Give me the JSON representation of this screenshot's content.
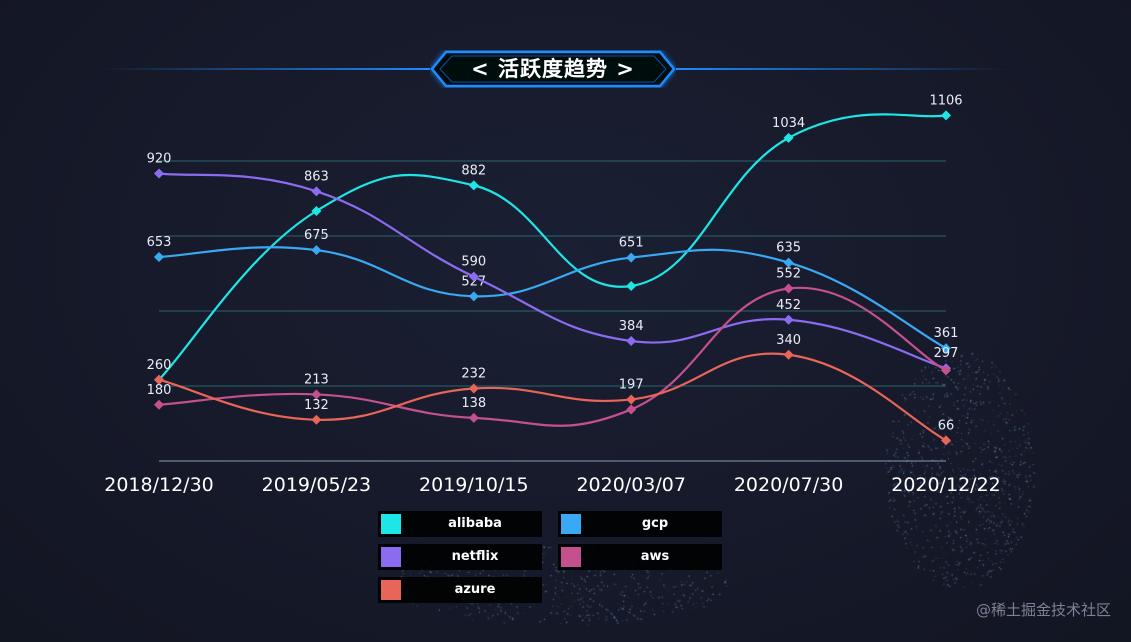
{
  "title": "< 活跃度趋势 >",
  "watermark": "@稀土掘金技术社区",
  "chart_data": {
    "type": "line",
    "title": "< 活跃度趋势 >",
    "categories": [
      "2018/12/30",
      "2019/05/23",
      "2019/10/15",
      "2020/03/07",
      "2020/07/30",
      "2020/12/22"
    ],
    "ylim": [
      0,
      1200
    ],
    "grid": true,
    "legend_position": "bottom",
    "series": [
      {
        "name": "alibaba",
        "color": "#1ee6e6",
        "values": [
          260,
          800,
          882,
          560,
          1034,
          1106
        ],
        "labels": [
          null,
          null,
          "882",
          null,
          "1034",
          "1106"
        ]
      },
      {
        "name": "gcp",
        "color": "#39a9f4",
        "values": [
          653,
          675,
          527,
          651,
          635,
          361
        ],
        "labels": [
          "653",
          "675",
          "527",
          "651",
          "635",
          "361"
        ]
      },
      {
        "name": "netflix",
        "color": "#8b6cf0",
        "values": [
          920,
          863,
          590,
          384,
          452,
          297
        ],
        "labels": [
          "920",
          "863",
          "590",
          "384",
          "452",
          "297"
        ]
      },
      {
        "name": "aws",
        "color": "#c4508e",
        "values": [
          180,
          213,
          138,
          165,
          552,
          290
        ],
        "labels": [
          "180",
          "213",
          "138",
          null,
          "552",
          null
        ]
      },
      {
        "name": "azure",
        "color": "#e8655a",
        "values": [
          260,
          132,
          232,
          197,
          340,
          66
        ],
        "labels": [
          "260",
          "132",
          "232",
          "197",
          "340",
          "66"
        ]
      }
    ]
  }
}
